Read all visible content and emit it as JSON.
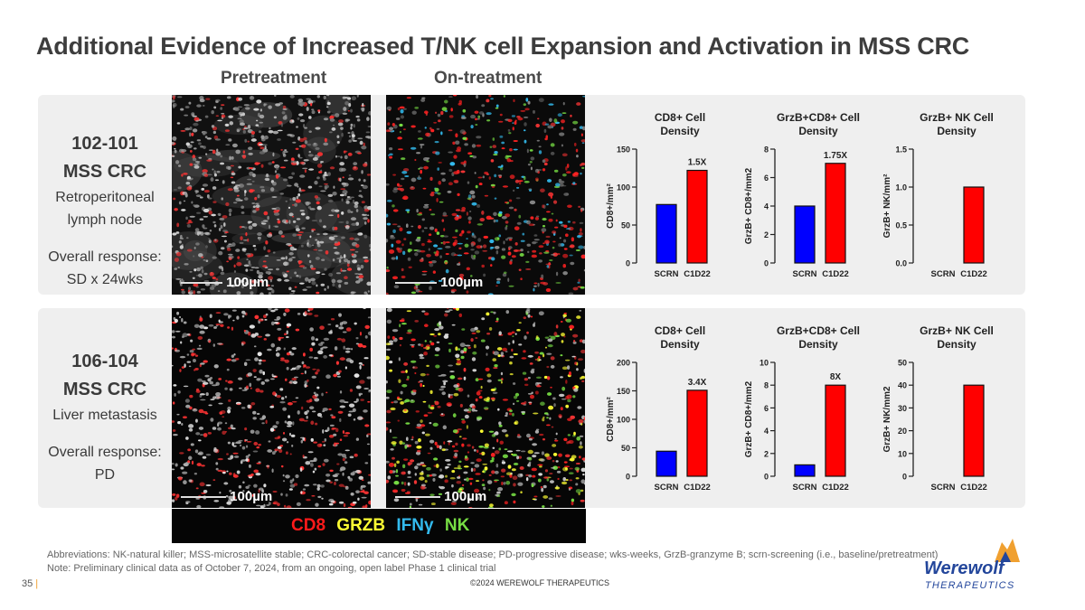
{
  "title": "Additional Evidence of Increased T/NK cell Expansion and Activation in MSS CRC",
  "columns": {
    "pre": "Pretreatment",
    "on": "On-treatment"
  },
  "cases": [
    {
      "id": "102-101",
      "type": "MSS CRC",
      "site_lines": [
        "Retroperitoneal",
        "lymph node"
      ],
      "response_label": "Overall response:",
      "response_value": "SD x 24wks",
      "scale_pre": "100µm",
      "scale_on": "100µm"
    },
    {
      "id": "106-104",
      "type": "MSS CRC",
      "site_lines": [
        "Liver metastasis"
      ],
      "response_label": "Overall response:",
      "response_value": "PD",
      "scale_pre": "100µm",
      "scale_on": "100µm"
    }
  ],
  "stain_legend": [
    {
      "label": "CD8",
      "color": "#ff1a1a"
    },
    {
      "label": "GRZB",
      "color": "#ffff33"
    },
    {
      "label": "IFNγ",
      "color": "#33bbee"
    },
    {
      "label": "NK",
      "color": "#77dd44"
    }
  ],
  "footnotes": [
    "Abbreviations: NK-natural killer; MSS-microsatellite stable; CRC-colorectal cancer; SD-stable disease; PD-progressive disease; wks-weeks, GrzB-granzyme B; scrn-screening (i.e., baseline/pretreatment)",
    "Note: Preliminary clinical data as of October 7, 2024, from an ongoing, open label Phase 1 clinical trial"
  ],
  "footer": {
    "copyright": "©2024 WEREWOLF THERAPEUTICS",
    "page": "35",
    "logo_name": "Werewolf",
    "logo_sub": "THERAPEUTICS"
  },
  "colors": {
    "scrn": "#0000ff",
    "c1d22": "#ff0000"
  },
  "chart_data": [
    {
      "type": "bar",
      "title_lines": [
        "CD8+ Cell",
        "Density"
      ],
      "ylabel": "CD8+/mm²",
      "categories": [
        "SCRN",
        "C1D22"
      ],
      "values": [
        77,
        122
      ],
      "ylim": [
        0,
        150
      ],
      "ticks": [
        "0",
        "50",
        "100",
        "150"
      ],
      "annotation": "1.5X"
    },
    {
      "type": "bar",
      "title_lines": [
        "GrzB+CD8+ Cell",
        "Density"
      ],
      "ylabel": "GrzB+ CD8+/mm2",
      "categories": [
        "SCRN",
        "C1D22"
      ],
      "values": [
        4.0,
        7.0
      ],
      "ylim": [
        0,
        8
      ],
      "ticks": [
        "0",
        "2",
        "4",
        "6",
        "8"
      ],
      "annotation": "1.75X"
    },
    {
      "type": "bar",
      "title_lines": [
        "GrzB+ NK Cell",
        "Density"
      ],
      "ylabel": "GrzB+ NK/mm²",
      "categories": [
        "SCRN",
        "C1D22"
      ],
      "values": [
        0,
        1.0
      ],
      "ylim": [
        0,
        1.5
      ],
      "ticks": [
        "0.0",
        "0.5",
        "1.0",
        "1.5"
      ],
      "annotation": ""
    },
    {
      "type": "bar",
      "title_lines": [
        "CD8+ Cell",
        "Density"
      ],
      "ylabel": "CD8+/mm²",
      "categories": [
        "SCRN",
        "C1D22"
      ],
      "values": [
        44,
        151
      ],
      "ylim": [
        0,
        200
      ],
      "ticks": [
        "0",
        "50",
        "100",
        "150",
        "200"
      ],
      "annotation": "3.4X"
    },
    {
      "type": "bar",
      "title_lines": [
        "GrzB+CD8+ Cell",
        "Density"
      ],
      "ylabel": "GrzB+ CD8+/mm2",
      "categories": [
        "SCRN",
        "C1D22"
      ],
      "values": [
        1.0,
        8.0
      ],
      "ylim": [
        0,
        10
      ],
      "ticks": [
        "0",
        "2",
        "4",
        "6",
        "8",
        "10"
      ],
      "annotation": "8X"
    },
    {
      "type": "bar",
      "title_lines": [
        "GrzB+ NK Cell",
        "Density"
      ],
      "ylabel": "GrzB+ NK/mm2",
      "categories": [
        "SCRN",
        "C1D22"
      ],
      "values": [
        0,
        40
      ],
      "ylim": [
        0,
        50
      ],
      "ticks": [
        "0",
        "10",
        "20",
        "30",
        "40",
        "50"
      ],
      "annotation": ""
    }
  ]
}
